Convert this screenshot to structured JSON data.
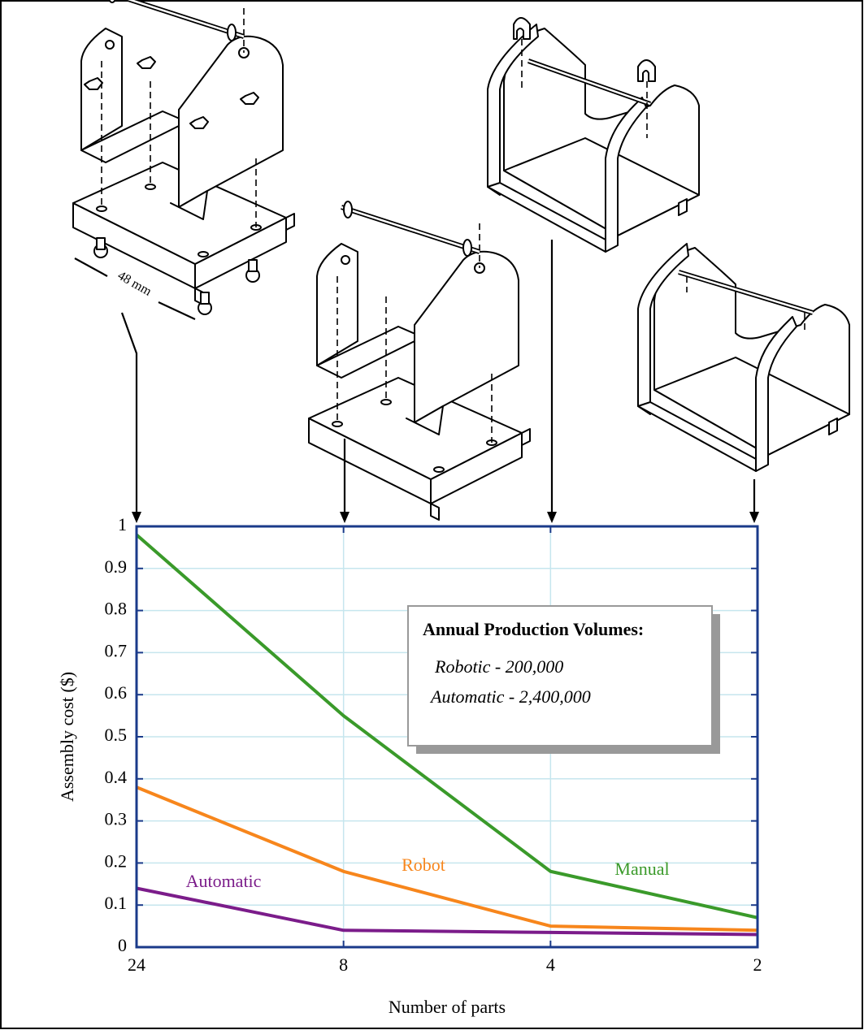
{
  "chart_data": {
    "type": "line",
    "illustration_label": "48 mm",
    "xlabel": "Number of parts",
    "ylabel": "Assembly cost ($)",
    "categories": [
      "24",
      "8",
      "4",
      "2"
    ],
    "ylim": [
      0,
      1
    ],
    "yticks": [
      0,
      0.1,
      0.2,
      0.3,
      0.4,
      0.5,
      0.6,
      0.7,
      0.8,
      0.9,
      1
    ],
    "grid": true,
    "series": [
      {
        "name": "Manual",
        "color": "#3a9a2a",
        "values": [
          0.98,
          0.55,
          0.18,
          0.07
        ]
      },
      {
        "name": "Robot",
        "color": "#f7861c",
        "values": [
          0.38,
          0.18,
          0.05,
          0.04
        ]
      },
      {
        "name": "Automatic",
        "color": "#7b1c8a",
        "values": [
          0.14,
          0.04,
          0.035,
          0.03
        ]
      }
    ],
    "annotation_box": {
      "title": "Annual Production Volumes:",
      "lines": [
        "Robotic - 200,000",
        "Automatic - 2,400,000"
      ]
    }
  }
}
